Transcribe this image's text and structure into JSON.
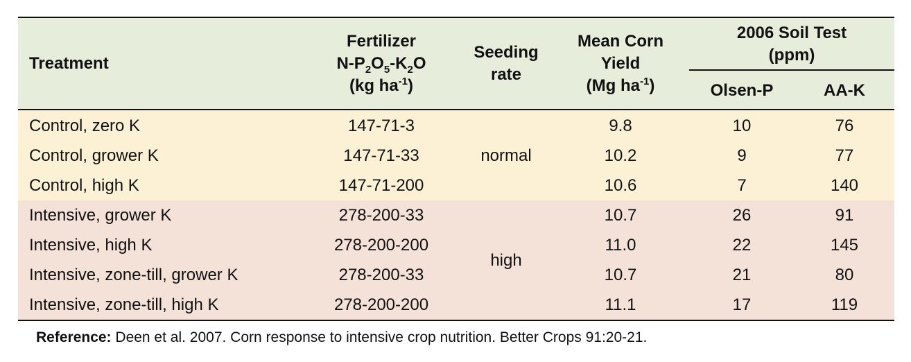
{
  "headers": {
    "treatment": "Treatment",
    "fertilizer_line1": "Fertilizer",
    "fertilizer_line2_a": "N-P",
    "fertilizer_line2_sub1": "2",
    "fertilizer_line2_b": "O",
    "fertilizer_line2_sub2": "5",
    "fertilizer_line2_c": "-K",
    "fertilizer_line2_sub3": "2",
    "fertilizer_line2_d": "O",
    "fertilizer_line3_a": "(kg ha",
    "fertilizer_line3_sup": "-1",
    "fertilizer_line3_b": ")",
    "seeding_line1": "Seeding",
    "seeding_line2": "rate",
    "yield_line1": "Mean Corn",
    "yield_line2": "Yield",
    "yield_line3_a": "(Mg ha",
    "yield_line3_sup": "-1",
    "yield_line3_b": ")",
    "soil_line1": "2006 Soil Test",
    "soil_line2": "(ppm)",
    "olsen": "Olsen-P",
    "aak": "AA-K"
  },
  "rows": [
    {
      "treatment": "Control, zero K",
      "fertilizer": "147-71-3",
      "yield": "9.8",
      "olsen": "10",
      "aak": "76"
    },
    {
      "treatment": "Control, grower K",
      "fertilizer": "147-71-33",
      "yield": "10.2",
      "olsen": "9",
      "aak": "77"
    },
    {
      "treatment": "Control, high K",
      "fertilizer": "147-71-200",
      "yield": "10.6",
      "olsen": "7",
      "aak": "140"
    },
    {
      "treatment": "Intensive, grower K",
      "fertilizer": "278-200-33",
      "yield": "10.7",
      "olsen": "26",
      "aak": "91"
    },
    {
      "treatment": "Intensive, high K",
      "fertilizer": "278-200-200",
      "yield": "11.0",
      "olsen": "22",
      "aak": "145"
    },
    {
      "treatment": "Intensive, zone-till, grower K",
      "fertilizer": "278-200-33",
      "yield": "10.7",
      "olsen": "21",
      "aak": "80"
    },
    {
      "treatment": "Intensive, zone-till, high K",
      "fertilizer": "278-200-200",
      "yield": "11.1",
      "olsen": "17",
      "aak": "119"
    }
  ],
  "seeding_groups": [
    "normal",
    "high"
  ],
  "reference": {
    "label": "Reference:",
    "text": " Deen et al. 2007. Corn response to intensive crop nutrition. Better Crops 91:20-21."
  },
  "colors": {
    "header_bg": "#e6eedb",
    "control_bg": "#fcf1d4",
    "intensive_bg": "#f4e2d8"
  }
}
